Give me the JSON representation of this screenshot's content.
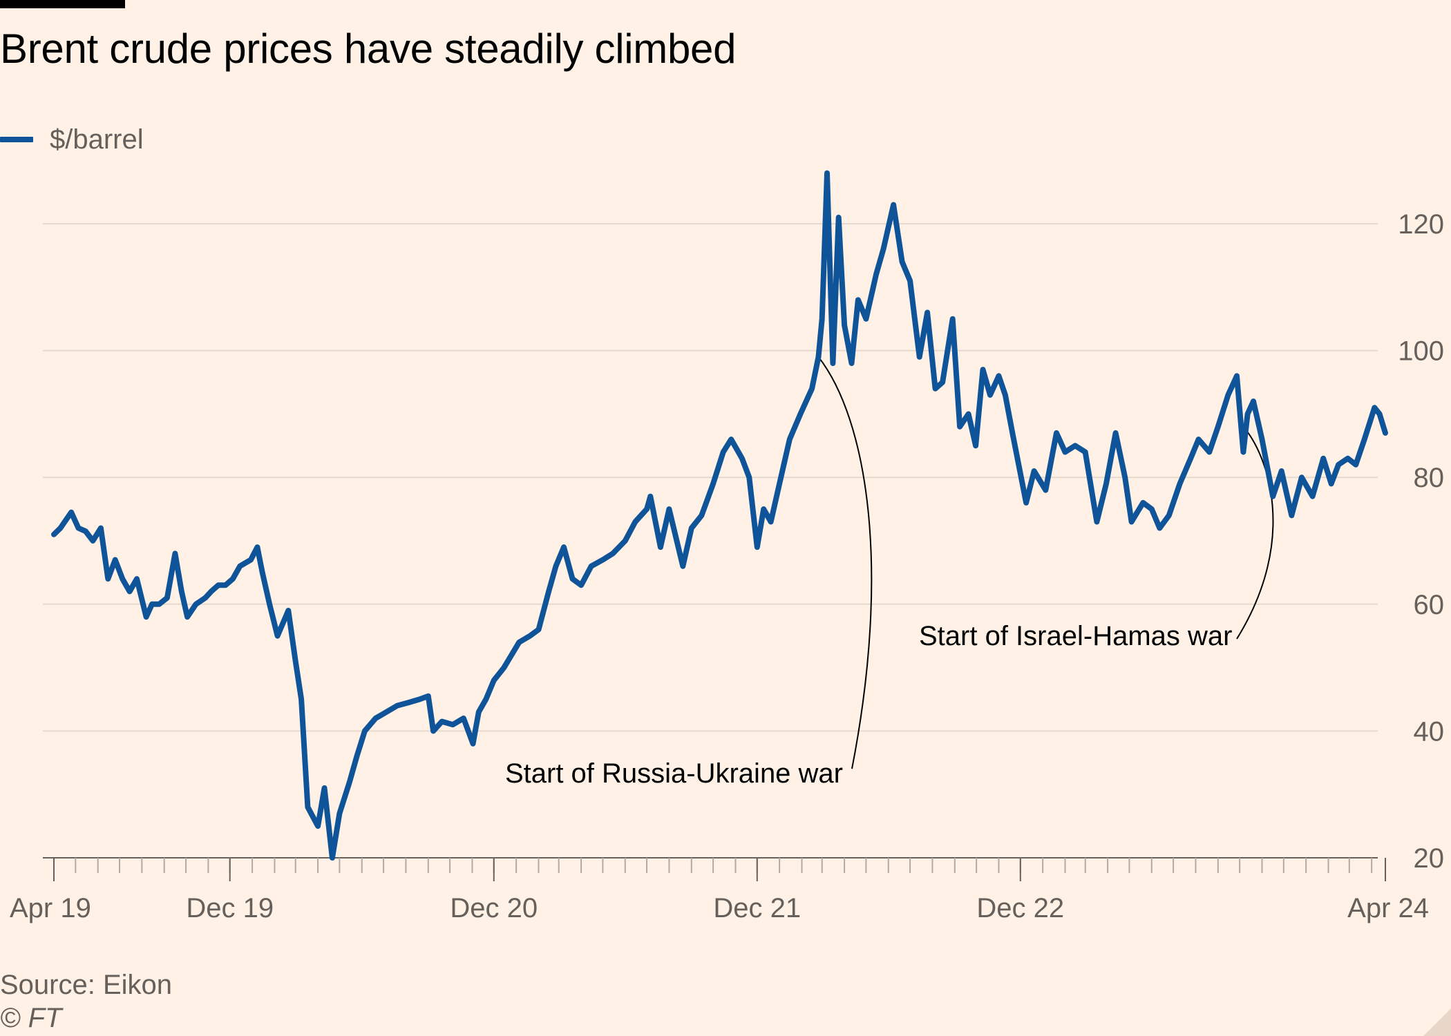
{
  "title": "Brent crude prices have steadily climbed",
  "legend": {
    "series_label": "$/barrel",
    "color": "#0f5499"
  },
  "footer": {
    "source": "Source: Eikon",
    "copyright": "© FT"
  },
  "chart_data": {
    "type": "line",
    "title": "Brent crude prices have steadily climbed",
    "xlabel": "",
    "ylabel": "",
    "y_axis_position": "right",
    "ylim": [
      20,
      130
    ],
    "yticks": [
      20,
      40,
      60,
      80,
      100,
      120
    ],
    "xlim": [
      "2019-04-01",
      "2024-04-20"
    ],
    "xticks": [
      {
        "date": "2019-04-01",
        "label": "Apr 19"
      },
      {
        "date": "2019-12-01",
        "label": "Dec 19"
      },
      {
        "date": "2020-12-01",
        "label": "Dec 20"
      },
      {
        "date": "2021-12-01",
        "label": "Dec 21"
      },
      {
        "date": "2022-12-01",
        "label": "Dec 22"
      },
      {
        "date": "2024-04-20",
        "label": "Apr 24"
      }
    ],
    "grid": true,
    "legend_position": "top-left",
    "series": [
      {
        "name": "$/barrel",
        "color": "#0f5499",
        "points": [
          [
            "2019-04-01",
            71
          ],
          [
            "2019-04-10",
            72
          ],
          [
            "2019-04-25",
            74.5
          ],
          [
            "2019-05-05",
            72
          ],
          [
            "2019-05-15",
            71.5
          ],
          [
            "2019-05-25",
            70
          ],
          [
            "2019-06-05",
            72
          ],
          [
            "2019-06-15",
            64
          ],
          [
            "2019-06-25",
            67
          ],
          [
            "2019-07-05",
            64
          ],
          [
            "2019-07-15",
            62
          ],
          [
            "2019-07-25",
            64
          ],
          [
            "2019-08-07",
            58
          ],
          [
            "2019-08-15",
            60
          ],
          [
            "2019-08-25",
            60
          ],
          [
            "2019-09-05",
            61
          ],
          [
            "2019-09-16",
            68
          ],
          [
            "2019-09-25",
            62
          ],
          [
            "2019-10-03",
            58
          ],
          [
            "2019-10-15",
            60
          ],
          [
            "2019-10-28",
            61
          ],
          [
            "2019-11-05",
            62
          ],
          [
            "2019-11-15",
            63
          ],
          [
            "2019-11-25",
            63
          ],
          [
            "2019-12-05",
            64
          ],
          [
            "2019-12-15",
            66
          ],
          [
            "2019-12-30",
            67
          ],
          [
            "2020-01-08",
            69
          ],
          [
            "2020-01-15",
            65
          ],
          [
            "2020-01-25",
            60
          ],
          [
            "2020-02-05",
            55
          ],
          [
            "2020-02-20",
            59
          ],
          [
            "2020-03-01",
            51
          ],
          [
            "2020-03-09",
            45
          ],
          [
            "2020-03-18",
            28
          ],
          [
            "2020-04-01",
            25
          ],
          [
            "2020-04-10",
            31
          ],
          [
            "2020-04-21",
            20
          ],
          [
            "2020-05-01",
            27
          ],
          [
            "2020-05-15",
            32
          ],
          [
            "2020-05-25",
            36
          ],
          [
            "2020-06-05",
            40
          ],
          [
            "2020-06-20",
            42
          ],
          [
            "2020-07-05",
            43
          ],
          [
            "2020-07-20",
            44
          ],
          [
            "2020-08-05",
            44.5
          ],
          [
            "2020-08-20",
            45
          ],
          [
            "2020-09-01",
            45.5
          ],
          [
            "2020-09-08",
            40
          ],
          [
            "2020-09-20",
            41.5
          ],
          [
            "2020-10-05",
            41
          ],
          [
            "2020-10-20",
            42
          ],
          [
            "2020-11-02",
            38
          ],
          [
            "2020-11-10",
            43
          ],
          [
            "2020-11-20",
            45
          ],
          [
            "2020-12-01",
            48
          ],
          [
            "2020-12-15",
            50
          ],
          [
            "2021-01-05",
            54
          ],
          [
            "2021-01-20",
            55
          ],
          [
            "2021-02-01",
            56
          ],
          [
            "2021-02-15",
            62
          ],
          [
            "2021-02-25",
            66
          ],
          [
            "2021-03-08",
            69
          ],
          [
            "2021-03-20",
            64
          ],
          [
            "2021-04-01",
            63
          ],
          [
            "2021-04-15",
            66
          ],
          [
            "2021-05-01",
            67
          ],
          [
            "2021-05-15",
            68
          ],
          [
            "2021-06-01",
            70
          ],
          [
            "2021-06-15",
            73
          ],
          [
            "2021-07-01",
            75
          ],
          [
            "2021-07-06",
            77
          ],
          [
            "2021-07-20",
            69
          ],
          [
            "2021-08-01",
            75
          ],
          [
            "2021-08-20",
            66
          ],
          [
            "2021-09-01",
            72
          ],
          [
            "2021-09-15",
            74
          ],
          [
            "2021-10-01",
            79
          ],
          [
            "2021-10-15",
            84
          ],
          [
            "2021-10-26",
            86
          ],
          [
            "2021-11-10",
            83
          ],
          [
            "2021-11-20",
            80
          ],
          [
            "2021-12-01",
            69
          ],
          [
            "2021-12-10",
            75
          ],
          [
            "2021-12-20",
            73
          ],
          [
            "2022-01-01",
            79
          ],
          [
            "2022-01-15",
            86
          ],
          [
            "2022-01-30",
            90
          ],
          [
            "2022-02-15",
            94
          ],
          [
            "2022-02-24",
            99
          ],
          [
            "2022-03-01",
            105
          ],
          [
            "2022-03-08",
            128
          ],
          [
            "2022-03-16",
            98
          ],
          [
            "2022-03-24",
            121
          ],
          [
            "2022-04-01",
            104
          ],
          [
            "2022-04-11",
            98
          ],
          [
            "2022-04-20",
            108
          ],
          [
            "2022-05-01",
            105
          ],
          [
            "2022-05-15",
            112
          ],
          [
            "2022-05-25",
            116
          ],
          [
            "2022-06-08",
            123
          ],
          [
            "2022-06-20",
            114
          ],
          [
            "2022-07-01",
            111
          ],
          [
            "2022-07-14",
            99
          ],
          [
            "2022-07-25",
            106
          ],
          [
            "2022-08-05",
            94
          ],
          [
            "2022-08-15",
            95
          ],
          [
            "2022-08-29",
            105
          ],
          [
            "2022-09-08",
            88
          ],
          [
            "2022-09-20",
            90
          ],
          [
            "2022-09-30",
            85
          ],
          [
            "2022-10-10",
            97
          ],
          [
            "2022-10-20",
            93
          ],
          [
            "2022-11-01",
            96
          ],
          [
            "2022-11-10",
            93
          ],
          [
            "2022-11-20",
            87
          ],
          [
            "2022-12-09",
            76
          ],
          [
            "2022-12-20",
            81
          ],
          [
            "2023-01-05",
            78
          ],
          [
            "2023-01-20",
            87
          ],
          [
            "2023-02-01",
            84
          ],
          [
            "2023-02-15",
            85
          ],
          [
            "2023-03-01",
            84
          ],
          [
            "2023-03-17",
            73
          ],
          [
            "2023-03-30",
            79
          ],
          [
            "2023-04-12",
            87
          ],
          [
            "2023-04-25",
            80
          ],
          [
            "2023-05-04",
            73
          ],
          [
            "2023-05-20",
            76
          ],
          [
            "2023-06-01",
            75
          ],
          [
            "2023-06-12",
            72
          ],
          [
            "2023-06-25",
            74
          ],
          [
            "2023-07-10",
            79
          ],
          [
            "2023-07-25",
            83
          ],
          [
            "2023-08-05",
            86
          ],
          [
            "2023-08-20",
            84
          ],
          [
            "2023-09-01",
            88
          ],
          [
            "2023-09-15",
            93
          ],
          [
            "2023-09-27",
            96
          ],
          [
            "2023-10-06",
            84
          ],
          [
            "2023-10-12",
            90
          ],
          [
            "2023-10-20",
            92
          ],
          [
            "2023-11-01",
            86
          ],
          [
            "2023-11-16",
            77
          ],
          [
            "2023-11-28",
            81
          ],
          [
            "2023-12-12",
            74
          ],
          [
            "2023-12-26",
            80
          ],
          [
            "2024-01-10",
            77
          ],
          [
            "2024-01-25",
            83
          ],
          [
            "2024-02-05",
            79
          ],
          [
            "2024-02-15",
            82
          ],
          [
            "2024-02-28",
            83
          ],
          [
            "2024-03-10",
            82
          ],
          [
            "2024-03-22",
            86
          ],
          [
            "2024-04-05",
            91
          ],
          [
            "2024-04-12",
            90
          ],
          [
            "2024-04-20",
            87
          ]
        ]
      }
    ],
    "annotations": [
      {
        "text": "Start of Russia-Ukraine war",
        "date": "2022-02-24",
        "value": 99
      },
      {
        "text": "Start of Israel-Hamas war",
        "date": "2023-10-06",
        "value": 88
      }
    ]
  }
}
